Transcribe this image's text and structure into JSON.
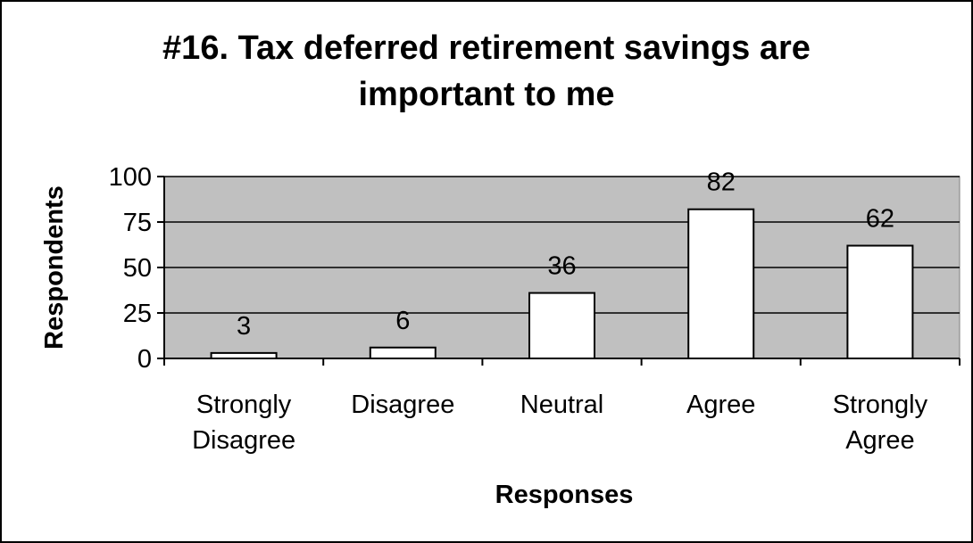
{
  "chart_data": {
    "type": "bar",
    "title_lines": [
      "#16. Tax deferred retirement savings are",
      "important to me"
    ],
    "xlabel": "Responses",
    "ylabel": "Respondents",
    "categories": [
      [
        "Strongly",
        "Disagree"
      ],
      [
        "Disagree"
      ],
      [
        "Neutral"
      ],
      [
        "Agree"
      ],
      [
        "Strongly",
        "Agree"
      ]
    ],
    "values": [
      3,
      6,
      36,
      82,
      62
    ],
    "ylim": [
      0,
      100
    ],
    "yticks": [
      0,
      25,
      50,
      75,
      100
    ],
    "data_labels": true,
    "grid": true,
    "legend": "none",
    "colors": {
      "plot_background": "#c0c0c0",
      "bar_fill": "#ffffff",
      "bar_stroke": "#000000",
      "gridline": "#000000"
    }
  }
}
